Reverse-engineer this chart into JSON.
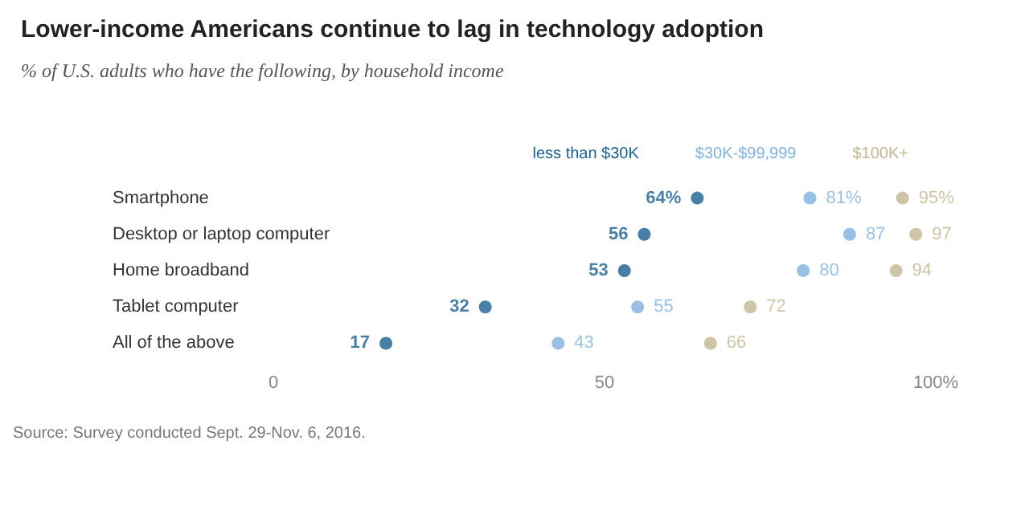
{
  "chart_data": {
    "type": "scatter",
    "orientation": "horizontal",
    "title": "Lower-income Americans continue to lag in technology adoption",
    "subtitle": "% of U.S. adults who have the following, by household income",
    "categories": [
      "Smartphone",
      "Desktop or laptop computer",
      "Home broadband",
      "Tablet computer",
      "All of the above"
    ],
    "series": [
      {
        "name": "less than $30K",
        "color": "#1a5f91",
        "values": [
          64,
          56,
          53,
          32,
          17
        ],
        "value_labels": [
          "64%",
          "56",
          "53",
          "32",
          "17"
        ]
      },
      {
        "name": "$30K-$99,999",
        "color": "#7fb2df",
        "values": [
          81,
          87,
          80,
          55,
          43
        ],
        "value_labels": [
          "81%",
          "87",
          "80",
          "55",
          "43"
        ]
      },
      {
        "name": "$100K+",
        "color": "#c2b590",
        "values": [
          95,
          97,
          94,
          72,
          66
        ],
        "value_labels": [
          "95%",
          "97",
          "94",
          "72",
          "66"
        ]
      }
    ],
    "xlim": [
      0,
      100
    ],
    "xticks": [
      0,
      50,
      {
        "value": 100,
        "label": "100%"
      }
    ],
    "marker": "circle",
    "legend": "top",
    "grid": false,
    "annotations": [
      "Source: Survey conducted Sept. 29-Nov. 6, 2016."
    ]
  }
}
